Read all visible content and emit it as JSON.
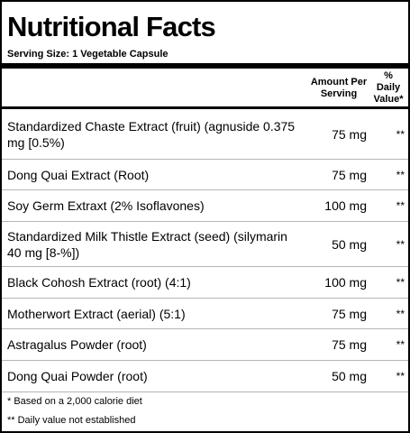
{
  "title": "Nutritional Facts",
  "serving_size": "Serving Size:  1 Vegetable Capsule",
  "header": {
    "amount_per_serving_line1": "Amount Per",
    "amount_per_serving_line2": "Serving",
    "daily_value_line1": "%",
    "daily_value_line2": "Daily",
    "daily_value_line3": "Value*"
  },
  "rows": [
    {
      "name": "Standardized Chaste Extract (fruit) (agnuside 0.375 mg [0.5%)",
      "amount": "75 mg",
      "dv": "**"
    },
    {
      "name": "Dong Quai Extract (Root)",
      "amount": "75 mg",
      "dv": "**"
    },
    {
      "name": "Soy Germ Extraxt (2% Isoflavones)",
      "amount": "100 mg",
      "dv": "**"
    },
    {
      "name": "Standardized Milk Thistle Extract (seed) (silymarin 40 mg [8-%])",
      "amount": "50 mg",
      "dv": "**"
    },
    {
      "name": "Black Cohosh Extract (root) (4:1)",
      "amount": "100 mg",
      "dv": "**"
    },
    {
      "name": "Motherwort Extract (aerial) (5:1)",
      "amount": "75 mg",
      "dv": "**"
    },
    {
      "name": "Astragalus Powder (root)",
      "amount": "75 mg",
      "dv": "**"
    },
    {
      "name": "Dong Quai Powder (root)",
      "amount": "50 mg",
      "dv": "**"
    }
  ],
  "footnotes": {
    "calorie_note": "* Based on a 2,000 calorie diet",
    "dv_note": "** Daily value not established"
  }
}
